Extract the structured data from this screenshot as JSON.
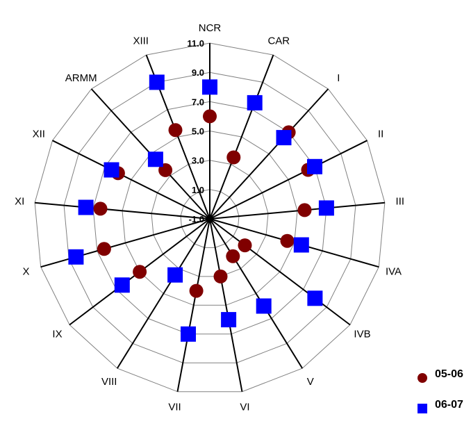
{
  "chart_data": {
    "type": "radar",
    "title": "",
    "categories": [
      "NCR",
      "CAR",
      "I",
      "II",
      "III",
      "IVA",
      "IVB",
      "V",
      "VI",
      "VII",
      "VIII",
      "IX",
      "X",
      "XI",
      "XII",
      "ARMM",
      "XIII"
    ],
    "radial_ticks": [
      "-1.0",
      "1.0",
      "3.0",
      "5.0",
      "7.0",
      "9.0",
      "11.0"
    ],
    "rlim": [
      -1,
      11
    ],
    "grid": true,
    "legend_position": "bottom-right",
    "series": [
      {
        "name": "05-06",
        "marker": "circle",
        "color": "#800000",
        "values": [
          6.0,
          3.5,
          7.0,
          6.5,
          5.5,
          4.5,
          2.0,
          2.0,
          3.0,
          4.0,
          3.5,
          5.0,
          6.5,
          6.5,
          6.0,
          3.5,
          5.5
        ]
      },
      {
        "name": "06-07",
        "marker": "square",
        "color": "#0000FF",
        "values": [
          8.0,
          7.5,
          6.5,
          7.0,
          7.0,
          5.5,
          8.0,
          6.0,
          6.0,
          7.0,
          3.5,
          6.5,
          8.5,
          7.5,
          6.5,
          4.5,
          9.0
        ]
      }
    ]
  }
}
